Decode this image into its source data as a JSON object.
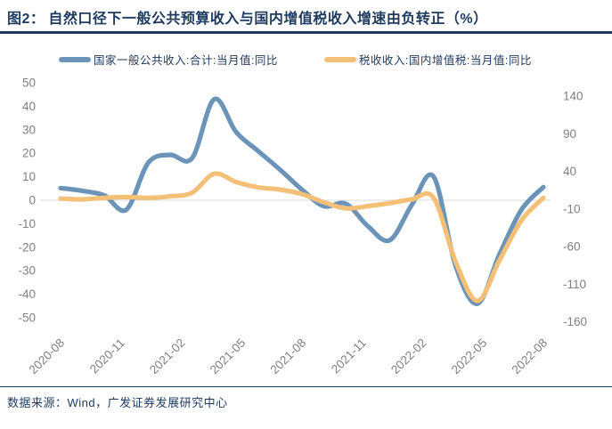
{
  "header": {
    "figure_label": "图2：",
    "title": "自然口径下一般公共预算收入与国内增值税收入增速由负转正（%）"
  },
  "footer": {
    "source": "数据来源：Wind，广发证券发展研究中心"
  },
  "colors": {
    "title_navy": "#1e3a5f",
    "axis_gray": "#808080",
    "gridline_gray": "#d9d9d9",
    "series_blue": "#6b94b8",
    "series_orange": "#f4c078"
  },
  "chart_data": {
    "type": "line",
    "title": "",
    "xlabel": "",
    "ylabel": "",
    "grid": "zero-line-only",
    "legend_position": "top",
    "categories": [
      "2020-08",
      "2020-09",
      "2020-10",
      "2020-11",
      "2020-12",
      "2021-02",
      "2021-03",
      "2021-04",
      "2021-05",
      "2021-06",
      "2021-07",
      "2021-08",
      "2021-09",
      "2021-10",
      "2021-11",
      "2021-12",
      "2022-02",
      "2022-03",
      "2022-04",
      "2022-05",
      "2022-06",
      "2022-07",
      "2022-08"
    ],
    "x_tick_labels": [
      "2020-08",
      "2020-11",
      "2021-02",
      "2021-05",
      "2021-08",
      "2021-11",
      "2022-02",
      "2022-05",
      "2022-08"
    ],
    "series": [
      {
        "name": "国家一般公共收入:合计:当月值:同比",
        "axis": "left",
        "color": "#6b94b8",
        "values": [
          5.2,
          4.0,
          2.0,
          -4.0,
          16.0,
          19.3,
          18.0,
          43.0,
          29.0,
          21.0,
          13.0,
          4.5,
          -2.5,
          -1.5,
          -11.0,
          -17.0,
          -2.0,
          10.0,
          -28.0,
          -44.0,
          -23.0,
          -4.0,
          5.6
        ]
      },
      {
        "name": "税收收入:国内增值税:当月值:同比",
        "axis": "right",
        "color": "#f4c078",
        "values": [
          4,
          3,
          5,
          6,
          5,
          7,
          12,
          37,
          26,
          19,
          16,
          10,
          -1,
          -9,
          -6,
          -2,
          3,
          5,
          -80,
          -132,
          -78,
          -25,
          5
        ]
      }
    ],
    "left_axis": {
      "ticks": [
        50,
        40,
        30,
        20,
        10,
        0,
        -10,
        -20,
        -30,
        -40,
        -50
      ],
      "min": -50,
      "max": 50
    },
    "right_axis": {
      "ticks": [
        140,
        90,
        40,
        -10,
        -60,
        -110,
        -160
      ],
      "min": -160,
      "max": 140
    },
    "zero_gridline": 0
  }
}
